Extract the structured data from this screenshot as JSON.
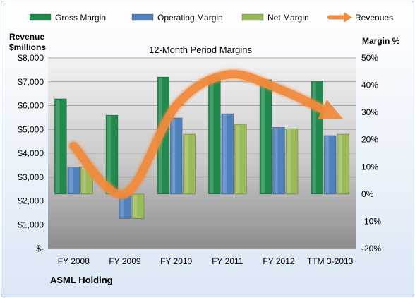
{
  "chart_data": {
    "type": "bar",
    "title": "12-Month Period Margins",
    "company": "ASML Holding",
    "ylabel_left": [
      "Revenue",
      "$millions"
    ],
    "ylabel_right": "Margin %",
    "categories": [
      "FY 2008",
      "FY 2009",
      "FY 2010",
      "FY 2011",
      "FY 2012",
      "TTM 3-2013"
    ],
    "left_ticks": [
      "$-",
      "$1,000",
      "$2,000",
      "$3,000",
      "$4,000",
      "$5,000",
      "$6,000",
      "$7,000",
      "$8,000"
    ],
    "right_ticks": [
      "-20%",
      "-10%",
      "0%",
      "10%",
      "20%",
      "30%",
      "40%",
      "50%"
    ],
    "ylim_left": [
      0,
      8000
    ],
    "ylim_right": [
      -20,
      50
    ],
    "legend_position": "top",
    "grid": true,
    "series": [
      {
        "name": "Gross Margin",
        "axis": "right",
        "kind": "bar",
        "color": "#1f8a4c",
        "values": [
          35,
          29,
          43,
          43,
          42,
          41.5
        ]
      },
      {
        "name": "Operating Margin",
        "axis": "right",
        "kind": "bar",
        "color": "#4f81bd",
        "values": [
          10,
          -9,
          28,
          29.5,
          24.5,
          21.5
        ]
      },
      {
        "name": "Net Margin",
        "axis": "right",
        "kind": "bar",
        "color": "#9bbb59",
        "values": [
          10,
          -9,
          22,
          25.5,
          24,
          22
        ]
      },
      {
        "name": "Revenues",
        "axis": "left",
        "kind": "line",
        "color": "#f08a3c",
        "values": [
          4300,
          2300,
          6000,
          7300,
          6700,
          5700
        ]
      }
    ]
  }
}
